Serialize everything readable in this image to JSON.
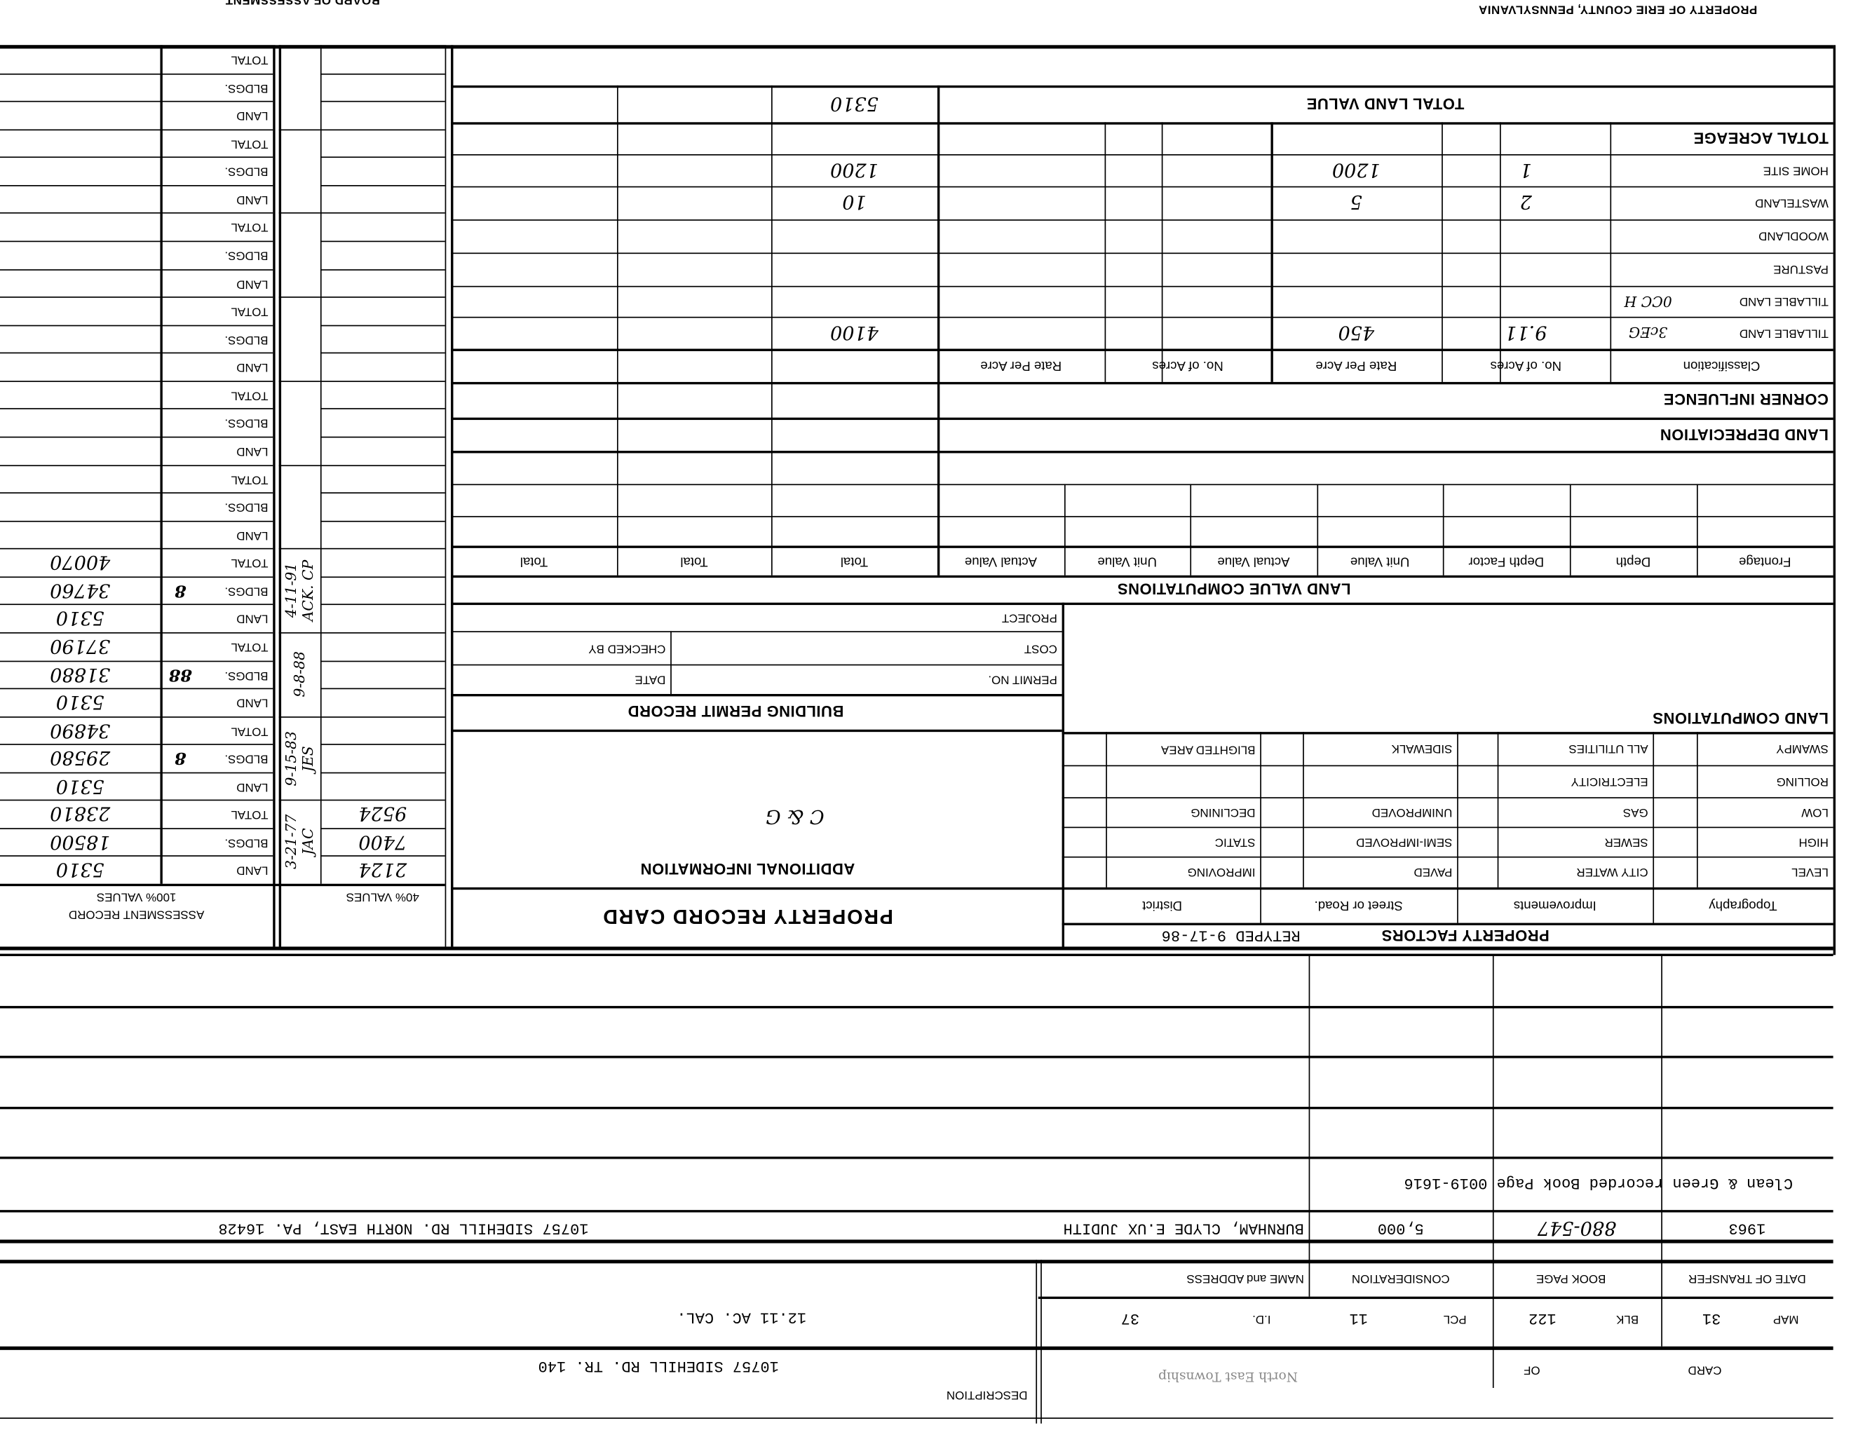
{
  "header": {
    "county": "PROPERTY OF ERIE COUNTY, PENNSYLVANIA",
    "board": "BOARD OF ASSESSMENT"
  },
  "assessment": {
    "title": "ASSESSMENT RECORD",
    "subtitle": "100% VALUES",
    "forty_title": "40% VALUES",
    "labels": {
      "land": "LAND",
      "bldgs": "BLDGS.",
      "total": "TOTAL"
    },
    "groups": [
      {
        "land": "5310",
        "bldgs": "18500",
        "total": "23810",
        "land40": "2124",
        "bldgs40": "7400",
        "total40": "9524",
        "date": "3-21-77 JAC",
        "mark": ""
      },
      {
        "land": "5310",
        "bldgs": "29580",
        "total": "34890",
        "land40": "",
        "bldgs40": "",
        "total40": "",
        "date": "9-15-83 JES",
        "mark": "8"
      },
      {
        "land": "5310",
        "bldgs": "31880",
        "total": "37190",
        "land40": "",
        "bldgs40": "",
        "total40": "",
        "date": "9-8-88",
        "mark": "88"
      },
      {
        "land": "5310",
        "bldgs": "34760",
        "total": "40070",
        "land40": "",
        "bldgs40": "",
        "total40": "",
        "date": "4-11-91 ACK. CP",
        "mark": "8"
      },
      {
        "land": "",
        "bldgs": "",
        "total": "",
        "land40": "",
        "bldgs40": "",
        "total40": "",
        "date": "",
        "mark": ""
      },
      {
        "land": "",
        "bldgs": "",
        "total": "",
        "land40": "",
        "bldgs40": "",
        "total40": "",
        "date": "",
        "mark": ""
      },
      {
        "land": "",
        "bldgs": "",
        "total": "",
        "land40": "",
        "bldgs40": "",
        "total40": "",
        "date": "",
        "mark": ""
      },
      {
        "land": "",
        "bldgs": "",
        "total": "",
        "land40": "",
        "bldgs40": "",
        "total40": "",
        "date": "",
        "mark": ""
      },
      {
        "land": "",
        "bldgs": "",
        "total": "",
        "land40": "",
        "bldgs40": "",
        "total40": "",
        "date": "",
        "mark": ""
      },
      {
        "land": "",
        "bldgs": "",
        "total": "",
        "land40": "",
        "bldgs40": "",
        "total40": "",
        "date": "",
        "mark": ""
      }
    ]
  },
  "acreage": {
    "total_land_value_label": "TOTAL LAND VALUE",
    "total_land_value": "5310",
    "total_acreage_label": "TOTAL ACREAGE",
    "columns": {
      "classification": "Classification",
      "acres": "No. of Acres",
      "rate": "Rate Per Acre"
    },
    "rows": [
      {
        "label": "HOME SITE",
        "note": "",
        "acres": "1",
        "rate": "1200",
        "value": "1200"
      },
      {
        "label": "WASTELAND",
        "note": "",
        "acres": "2",
        "rate": "5",
        "value": "10"
      },
      {
        "label": "WOODLAND",
        "note": "",
        "acres": "",
        "rate": "",
        "value": ""
      },
      {
        "label": "PASTURE",
        "note": "",
        "acres": "",
        "rate": "",
        "value": ""
      },
      {
        "label": "TILLABLE LAND",
        "note": "0CC H",
        "acres": "",
        "rate": "",
        "value": ""
      },
      {
        "label": "TILLABLE LAND",
        "note": "3cEG",
        "acres": "9.11",
        "rate": "450",
        "value": "4100"
      }
    ],
    "corner_influence": "CORNER INFLUENCE",
    "land_depreciation": "LAND DEPRECIATION"
  },
  "land_value_computations": {
    "title": "LAND VALUE COMPUTATIONS",
    "columns": [
      "Frontage",
      "Depth",
      "Depth Factor",
      "Unit Value",
      "Actual Value",
      "Unit Value",
      "Actual Value",
      "Total",
      "Total",
      "Total"
    ]
  },
  "building_permit": {
    "title": "BUILDING PERMIT RECORD",
    "project": "PROJECT",
    "cost": "COST",
    "checked_by": "CHECKED BY",
    "permit_no": "PERMIT NO.",
    "date": "DATE"
  },
  "additional_info": {
    "title": "ADDITIONAL INFORMATION",
    "note": "C & G"
  },
  "card_title": "PROPERTY RECORD CARD",
  "land_computations": "LAND COMPUTATIONS",
  "property_factors": {
    "title": "PROPERTY FACTORS",
    "retyped": "RETYPED 9-17-86",
    "headers": [
      "Topography",
      "Improvements",
      "Street or Road.",
      "District"
    ],
    "topography": [
      "LEVEL",
      "HIGH",
      "LOW",
      "ROLLING",
      "SWAMPY"
    ],
    "improvements": [
      "CITY WATER",
      "SEWER",
      "GAS",
      "ELECTRICITY",
      "ALL UTILITIES"
    ],
    "street": [
      "PAVED",
      "SEMI-IMPROVED",
      "UNIMPROVED",
      "",
      "SIDEWALK"
    ],
    "district": [
      "IMPROVING",
      "STATIC",
      "DECLINING",
      "",
      "BLIGHTED AREA"
    ]
  },
  "transfers": {
    "headers": {
      "date": "DATE OF TRANSFER",
      "book_page": "BOOK PAGE",
      "consideration": "CONSIDERATION",
      "name": "NAME and ADDRESS"
    },
    "rows": [
      {
        "date": "1963",
        "book_page": "880-547",
        "consideration": "5,000",
        "name": "BURNHAM, CLYDE E.UX JUDITH",
        "address": "10757 SIDEHILL RD. NORTH EAST, PA. 16428"
      }
    ],
    "clean_green": "Clean & Green recorded Book Page 0019-1616"
  },
  "parcel": {
    "map_label": "MAP",
    "map": "31",
    "blk_label": "BLK",
    "blk": "122",
    "pcl_label": "PCL",
    "pcl": "11",
    "id_label": "I.D.",
    "id": "37",
    "acreage_note": "12.11 AC. CAL."
  },
  "description": {
    "card_label": "CARD",
    "of_label": "OF",
    "township_stamp": "North East Township",
    "label": "DESCRIPTION",
    "text": "10757 SIDEHILL RD. TR. 140"
  }
}
